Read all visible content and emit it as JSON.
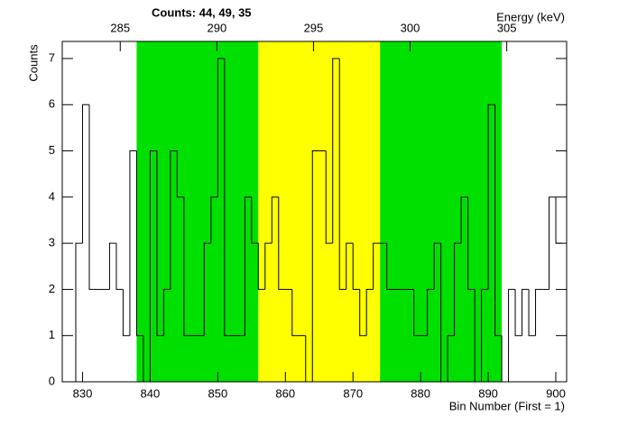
{
  "chart_data": {
    "type": "histogram",
    "title": "Counts:   44,   49,   35",
    "x_label": "Bin Number (First = 1)",
    "x2_label": "Energy (keV)",
    "y_label": "Counts",
    "bins": [
      829,
      830,
      831,
      832,
      833,
      834,
      835,
      836,
      837,
      838,
      839,
      840,
      841,
      842,
      843,
      844,
      845,
      846,
      847,
      848,
      849,
      850,
      851,
      852,
      853,
      854,
      855,
      856,
      857,
      858,
      859,
      860,
      861,
      862,
      863,
      864,
      865,
      866,
      867,
      868,
      869,
      870,
      871,
      872,
      873,
      874,
      875,
      876,
      877,
      878,
      879,
      880,
      881,
      882,
      883,
      884,
      885,
      886,
      887,
      888,
      889,
      890,
      891,
      892,
      893,
      894,
      895,
      896,
      897,
      898,
      899,
      900,
      901
    ],
    "values": [
      3,
      6,
      2,
      2,
      2,
      3,
      2,
      1,
      5,
      1,
      0,
      5,
      1,
      2,
      5,
      4,
      1,
      1,
      1,
      3,
      4,
      7,
      1,
      1,
      1,
      4,
      3,
      2,
      3,
      4,
      2,
      2,
      1,
      1,
      0,
      5,
      5,
      3,
      7,
      2,
      3,
      2,
      1,
      2,
      3,
      3,
      2,
      2,
      2,
      2,
      1,
      1,
      2,
      3,
      0,
      1,
      3,
      4,
      2,
      0,
      2,
      6,
      1,
      0,
      2,
      1,
      2,
      1,
      2,
      2,
      4,
      3
    ],
    "color": "#000000",
    "regions": [
      {
        "start": 838,
        "end": 856,
        "color": "#00e000"
      },
      {
        "start": 856,
        "end": 874,
        "color": "#ffff00"
      },
      {
        "start": 874,
        "end": 892,
        "color": "#00e000"
      }
    ],
    "xlim": [
      827,
      901.6
    ],
    "xticks": [
      830,
      840,
      850,
      860,
      870,
      880,
      890,
      900
    ],
    "x2lim": [
      282,
      308.1
    ],
    "x2ticks": [
      285,
      290,
      295,
      300,
      305
    ],
    "ylim": [
      0,
      7.37
    ],
    "yticks": [
      0,
      1,
      2,
      3,
      4,
      5,
      6,
      7
    ]
  }
}
